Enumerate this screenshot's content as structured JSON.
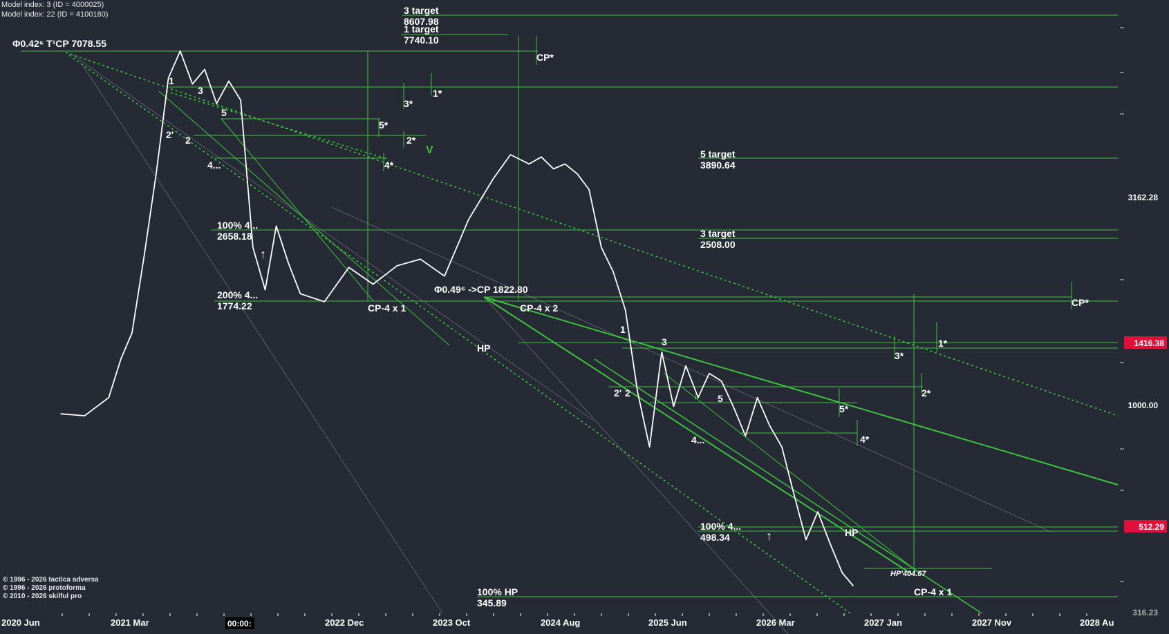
{
  "header": {
    "line1": "Model index: 3  (ID = 4000025)",
    "line2": "Model index: 22  (ID = 4100180)"
  },
  "copyright": [
    "© 1996 - 2026 tactica adversa",
    "© 1996 - 2026 protoforma",
    "© 2010 - 2026 skilful pro"
  ],
  "colors": {
    "background": "#252a35",
    "guide_green": "#3fc23f",
    "price_line": "#ffffff",
    "badge_red": "#e0103a"
  },
  "chart_data": {
    "type": "line",
    "scale": "log",
    "ylim": [
      316.23,
      10000
    ],
    "y_ticks": [
      "1000.00",
      "3162.28",
      "316.23"
    ],
    "x_ticks": [
      "2020 Jun",
      "2021 Mar",
      "00:00:",
      "2022 Dec",
      "2023 Oct",
      "2024 Aug",
      "2025 Jun",
      "2026 Mar",
      "2027 Jan",
      "2027 Nov",
      "2028 Au"
    ],
    "price_badges": [
      "1416.38",
      "512.29"
    ],
    "series": [
      {
        "x": [
          "2020-09-01",
          "2020-11-01",
          "2021-01-01",
          "2021-02-01",
          "2021-03-01",
          "2021-04-01",
          "2021-05-01",
          "2021-06-01",
          "2021-07-01",
          "2021-08-01",
          "2021-09-01",
          "2021-10-01",
          "2021-11-01",
          "2021-12-01",
          "2022-01-01",
          "2022-02-01",
          "2022-03-01",
          "2022-04-01",
          "2022-05-01",
          "2022-07-01",
          "2022-09-01",
          "2022-11-01",
          "2023-01-01",
          "2023-03-01",
          "2023-05-01",
          "2023-07-01",
          "2023-09-01",
          "2023-10-15",
          "2023-12-01",
          "2024-01-01",
          "2024-02-01",
          "2024-03-01",
          "2024-04-01",
          "2024-05-01",
          "2024-06-01",
          "2024-07-01",
          "2024-08-01",
          "2024-09-01",
          "2024-10-01",
          "2024-11-01",
          "2024-12-01",
          "2025-01-01",
          "2025-02-01",
          "2025-03-01",
          "2025-04-01",
          "2025-05-01",
          "2025-06-01",
          "2025-07-01",
          "2025-08-01",
          "2025-09-01",
          "2025-10-01",
          "2025-11-01",
          "2025-12-01",
          "2026-01-01",
          "2026-02-01",
          "2026-03-01"
        ],
        "values": [
          960,
          950,
          1050,
          1300,
          1500,
          2300,
          3600,
          6100,
          7078,
          5900,
          6400,
          5300,
          6000,
          5400,
          2400,
          1900,
          2700,
          2200,
          1860,
          1780,
          2150,
          1960,
          2170,
          2250,
          2050,
          2800,
          3500,
          4000,
          3800,
          3950,
          3700,
          3800,
          3600,
          3300,
          2400,
          2100,
          1700,
          1080,
          800,
          1350,
          1000,
          1250,
          1050,
          1200,
          1150,
          1000,
          850,
          1050,
          900,
          800,
          620,
          480,
          560,
          470,
          400,
          372
        ]
      }
    ],
    "annotations": [
      {
        "label": "Φ0.42⁶ T¹CP  7078.55"
      },
      {
        "label": "3 target",
        "value": "8607.98"
      },
      {
        "label": "1 target",
        "value": "7740.10"
      },
      {
        "label": "5 target",
        "value": "3890.64"
      },
      {
        "label": "3 target",
        "value": "2508.00"
      },
      {
        "label": "Φ0.49⁶ ->CP  1822.80"
      },
      {
        "label": "100%  4...",
        "value": "2658.18"
      },
      {
        "label": "200%  4...",
        "value": "1774.22"
      },
      {
        "label": "100%  4...",
        "value": "498.34"
      },
      {
        "label": "100% HP",
        "value": "345.89"
      },
      {
        "label": "HP'404.67"
      }
    ],
    "marker_labels": [
      "CP*",
      "1*",
      "3*",
      "5*",
      "2*",
      "4*",
      "CP*",
      "1*",
      "3*",
      "2*",
      "5*",
      "4*",
      "CP-4 x 1",
      "CP-4 x 2",
      "CP-4 x 1",
      "HP",
      "HP"
    ],
    "wave_labels": [
      "1",
      "3",
      "5",
      "2'",
      "2",
      "4...",
      "1",
      "3",
      "5",
      "2'",
      "2",
      "4..."
    ]
  }
}
